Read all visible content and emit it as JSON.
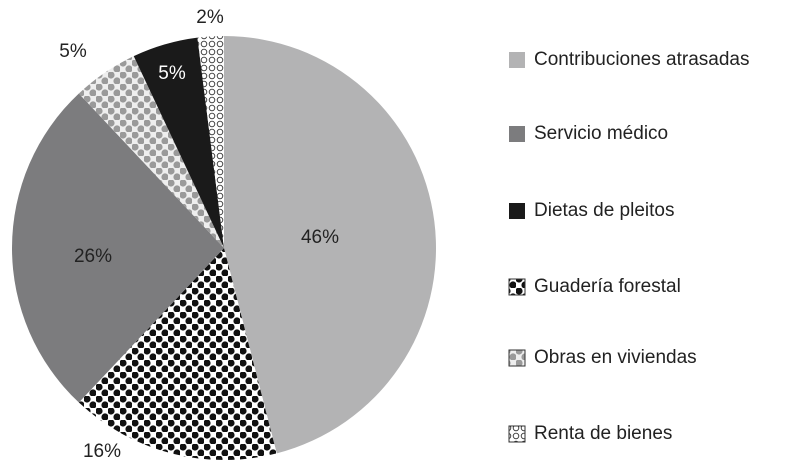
{
  "chart_data": {
    "type": "pie",
    "categories": [
      "Contribuciones atrasadas",
      "Servicio médico",
      "Dietas de pleitos",
      "Guadería forestal",
      "Obras en viviendas",
      "Renta de bienes"
    ],
    "values": [
      46,
      26,
      5,
      16,
      5,
      2
    ],
    "value_labels": [
      "46%",
      "26%",
      "5%",
      "16%",
      "5%",
      "2%"
    ],
    "colors": [
      "#b3b3b4",
      "#7c7c7e",
      "#1a1a1a",
      "url(#dots-black)",
      "url(#dots-gray)",
      "url(#rings)"
    ],
    "legend": "right"
  }
}
